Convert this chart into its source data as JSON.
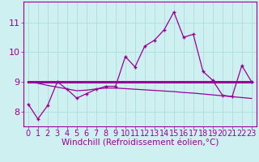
{
  "hours": [
    0,
    1,
    2,
    3,
    4,
    5,
    6,
    7,
    8,
    9,
    10,
    11,
    12,
    13,
    14,
    15,
    16,
    17,
    18,
    19,
    20,
    21,
    22,
    23
  ],
  "line1": [
    8.25,
    7.75,
    8.2,
    9.0,
    8.75,
    8.45,
    8.6,
    8.75,
    8.85,
    8.85,
    9.85,
    9.5,
    10.2,
    10.4,
    10.75,
    11.35,
    10.5,
    10.6,
    9.35,
    9.05,
    8.55,
    8.5,
    9.55,
    9.0
  ],
  "line2": [
    9.0,
    9.0,
    9.0,
    9.0,
    9.0,
    9.0,
    9.0,
    9.0,
    9.0,
    9.0,
    9.0,
    9.0,
    9.0,
    9.0,
    9.0,
    9.0,
    9.0,
    9.0,
    9.0,
    9.0,
    9.0,
    9.0,
    9.0,
    9.0
  ],
  "line3": [
    9.0,
    8.95,
    8.88,
    8.82,
    8.76,
    8.7,
    8.72,
    8.76,
    8.79,
    8.79,
    8.77,
    8.75,
    8.73,
    8.71,
    8.69,
    8.67,
    8.64,
    8.62,
    8.59,
    8.56,
    8.53,
    8.5,
    8.47,
    8.44
  ],
  "line_color": "#990099",
  "bg_color": "#cff0f0",
  "grid_color": "#aadddd",
  "xlabel": "Windchill (Refroidissement éolien,°C)",
  "ylim": [
    7.5,
    11.7
  ],
  "yticks": [
    8,
    9,
    10,
    11
  ],
  "xticks": [
    0,
    1,
    2,
    3,
    4,
    5,
    6,
    7,
    8,
    9,
    10,
    11,
    12,
    13,
    14,
    15,
    16,
    17,
    18,
    19,
    20,
    21,
    22,
    23
  ],
  "label_fontsize": 7.0,
  "xlabel_fontsize": 7.5
}
